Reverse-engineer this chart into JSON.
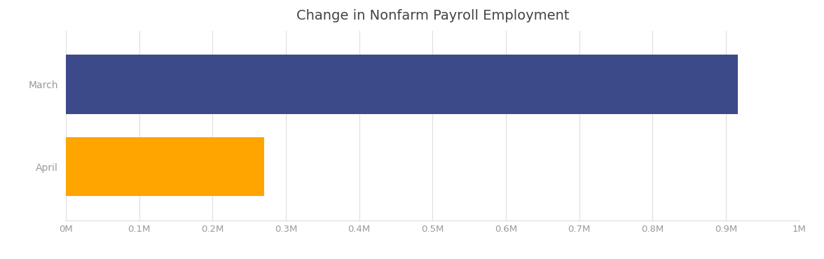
{
  "title": "Change in Nonfarm Payroll Employment",
  "categories": [
    "April",
    "March"
  ],
  "values": [
    270000,
    916000
  ],
  "bar_colors": [
    "#FFA500",
    "#3D4A8A"
  ],
  "xlim": [
    0,
    1000000
  ],
  "xticks": [
    0,
    100000,
    200000,
    300000,
    400000,
    500000,
    600000,
    700000,
    800000,
    900000,
    1000000
  ],
  "xticklabels": [
    "0M",
    "0.1M",
    "0.2M",
    "0.3M",
    "0.4M",
    "0.5M",
    "0.6M",
    "0.7M",
    "0.8M",
    "0.9M",
    "1M"
  ],
  "title_fontsize": 14,
  "title_color": "#444444",
  "tick_label_color": "#999999",
  "grid_color": "#DDDDDD",
  "background_color": "#FFFFFF",
  "bar_height": 0.72
}
